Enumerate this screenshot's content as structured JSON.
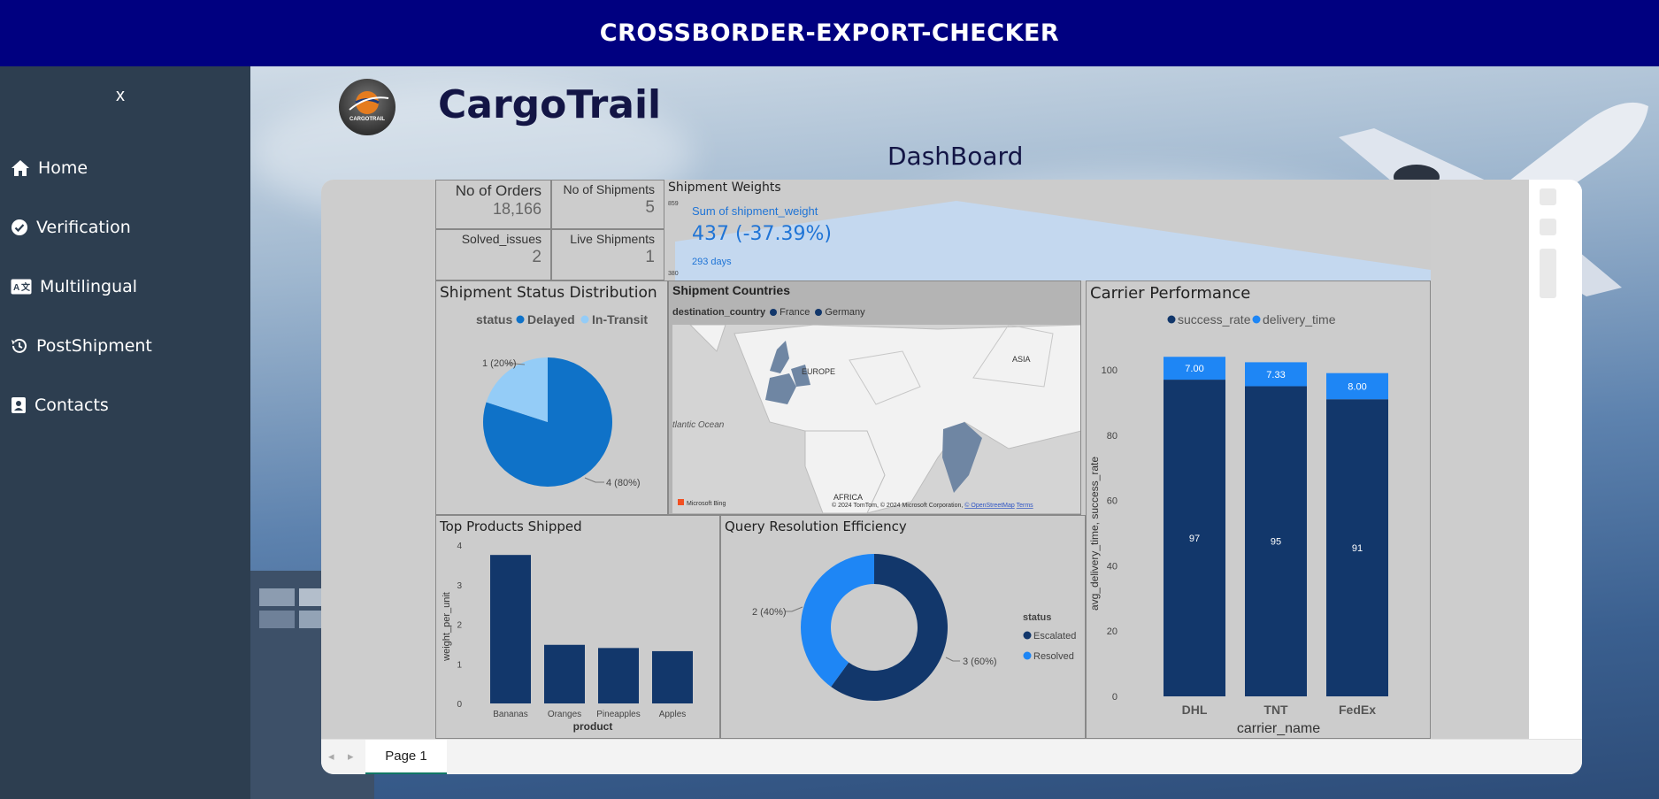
{
  "app_title": "CROSSBORDER-EXPORT-CHECKER",
  "sidebar": {
    "close_label": "x",
    "items": [
      {
        "label": "Home",
        "icon": "home-icon"
      },
      {
        "label": "Verification",
        "icon": "check-circle-icon"
      },
      {
        "label": "Multilingual",
        "icon": "language-icon"
      },
      {
        "label": "PostShipment",
        "icon": "history-icon"
      },
      {
        "label": "Contacts",
        "icon": "contact-card-icon"
      }
    ]
  },
  "header": {
    "brand": "CargoTrail",
    "logo_text": "CARGOTRAIL",
    "page_title": "DashBoard"
  },
  "kpis": {
    "orders": {
      "label": "No of Orders",
      "value": "18,166"
    },
    "shipments": {
      "label": "No of Shipments",
      "value": "5"
    },
    "solved": {
      "label": "Solved_issues",
      "value": "2"
    },
    "live": {
      "label": "Live Shipments",
      "value": "1"
    }
  },
  "weights": {
    "title": "Shipment Weights",
    "label": "Sum of shipment_weight",
    "value": "437 (-37.39%)",
    "period": "293 days",
    "axis_top": "859",
    "axis_bottom": "380"
  },
  "status_tile": {
    "title": "Shipment Status Distribution",
    "legend_title": "status"
  },
  "map_tile": {
    "title": "Shipment Countries",
    "legend_title": "destination_country",
    "legend": [
      "France",
      "Germany"
    ],
    "labels": {
      "europe": "EUROPE",
      "asia": "ASIA",
      "africa": "AFRICA",
      "ocean": "tlantic Ocean"
    },
    "attribution": "© 2024 TomTom, © 2024 Microsoft Corporation, ",
    "attribution_link1": "© OpenStreetMap",
    "attribution_link2": "Terms",
    "bing": "Microsoft Bing"
  },
  "carrier_tile": {
    "title": "Carrier Performance"
  },
  "products_tile": {
    "title": "Top Products Shipped"
  },
  "query_tile": {
    "title": "Query Resolution Efficiency",
    "legend_title": "status"
  },
  "colors": {
    "dark_blue": "#12376b",
    "mid_blue": "#0f72c8",
    "light_blue": "#94ccf7",
    "bright_blue": "#1e86f5"
  },
  "pager": {
    "page_label": "Page 1"
  },
  "chart_data": [
    {
      "id": "status",
      "type": "pie",
      "legend_title": "status",
      "slices": [
        {
          "name": "Delayed",
          "value": 4,
          "label": "4 (80%)"
        },
        {
          "name": "In-Transit",
          "value": 1,
          "label": "1 (20%)"
        }
      ]
    },
    {
      "id": "carrier",
      "type": "bar",
      "stacked": true,
      "categories": [
        "DHL",
        "TNT",
        "FedEx"
      ],
      "series": [
        {
          "name": "success_rate",
          "values": [
            97,
            95,
            91
          ],
          "labels": [
            "97",
            "95",
            "91"
          ]
        },
        {
          "name": "delivery_time",
          "values": [
            7.0,
            7.33,
            8.0
          ],
          "labels": [
            "7.00",
            "7.33",
            "8.00"
          ]
        }
      ],
      "xlabel": "carrier_name",
      "ylabel": "avg_delivery_time, success_rate",
      "ylim": [
        0,
        105
      ],
      "yticks": [
        0,
        20,
        40,
        60,
        80,
        100
      ]
    },
    {
      "id": "products",
      "type": "bar",
      "categories": [
        "Bananas",
        "Oranges",
        "Pineapples",
        "Apples"
      ],
      "values": [
        3.75,
        1.48,
        1.4,
        1.32
      ],
      "xlabel": "product",
      "ylabel": "weight_per_unit",
      "ylim": [
        0,
        4
      ],
      "yticks": [
        0,
        1,
        2,
        3,
        4
      ]
    },
    {
      "id": "query",
      "type": "pie",
      "donut": true,
      "legend_title": "status",
      "slices": [
        {
          "name": "Escalated",
          "value": 3,
          "label": "3 (60%)"
        },
        {
          "name": "Resolved",
          "value": 2,
          "label": "2 (40%)"
        }
      ]
    }
  ]
}
